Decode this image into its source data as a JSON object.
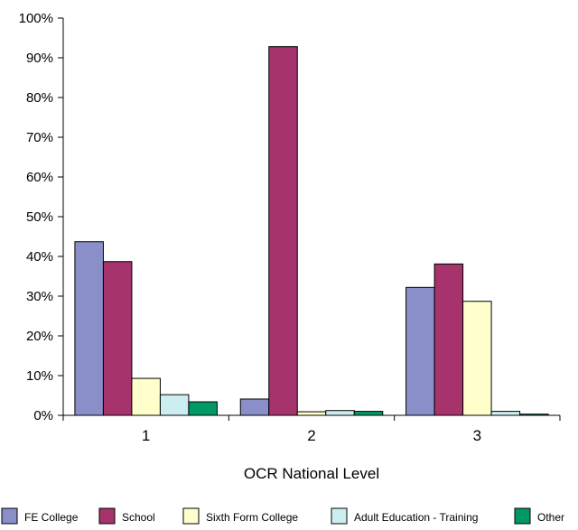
{
  "chart_data": {
    "type": "bar",
    "xlabel": "OCR National Level",
    "ylabel": "",
    "categories": [
      "1",
      "2",
      "3"
    ],
    "ylim": [
      0,
      100
    ],
    "y_ticks": [
      "0%",
      "10%",
      "20%",
      "30%",
      "40%",
      "50%",
      "60%",
      "70%",
      "80%",
      "90%",
      "100%"
    ],
    "grid": false,
    "legend_position": "bottom",
    "series": [
      {
        "name": "FE College",
        "color": "#8a8fc9",
        "values": [
          43.7,
          4.1,
          32.2
        ]
      },
      {
        "name": "School",
        "color": "#a6336b",
        "values": [
          38.7,
          92.8,
          38.1
        ]
      },
      {
        "name": "Sixth Form College",
        "color": "#ffffcc",
        "values": [
          9.3,
          0.9,
          28.7
        ]
      },
      {
        "name": "Adult Education - Training",
        "color": "#cceef0",
        "values": [
          5.2,
          1.2,
          1.0
        ]
      },
      {
        "name": "Other",
        "color": "#009966",
        "values": [
          3.4,
          1.0,
          0.3
        ]
      }
    ]
  }
}
